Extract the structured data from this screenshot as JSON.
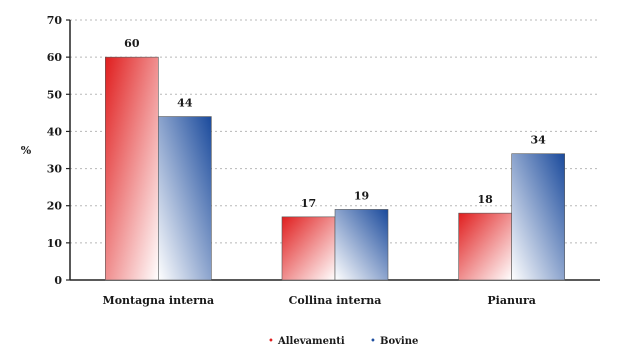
{
  "chart_data": {
    "type": "bar",
    "ylabel": "%",
    "xlabel": "",
    "ylim": [
      0,
      70
    ],
    "yticks": [
      0,
      10,
      20,
      30,
      40,
      50,
      60,
      70
    ],
    "grid": true,
    "legend_position": "bottom-center",
    "categories": [
      "Montagna interna",
      "Collina interna",
      "Pianura"
    ],
    "series": [
      {
        "name": "Allevamenti",
        "values": [
          60,
          17,
          18
        ],
        "color": "#e02020"
      },
      {
        "name": "Bovine",
        "values": [
          44,
          19,
          34
        ],
        "color": "#1f4fa0"
      }
    ]
  }
}
